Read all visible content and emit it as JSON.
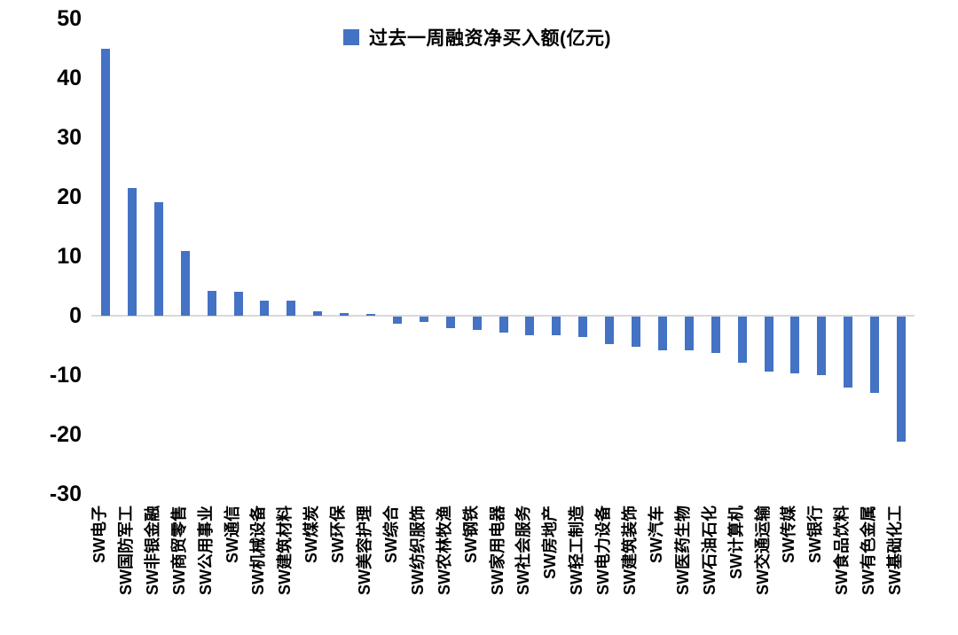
{
  "chart_data": {
    "type": "bar",
    "title": "",
    "legend": "过去一周融资净买入额(亿元)",
    "legend_position": "top-center",
    "grid": false,
    "xlabel": "",
    "ylabel": "",
    "ylim": [
      -30,
      50
    ],
    "ytick_step": 10,
    "yticks": [
      50,
      40,
      30,
      20,
      10,
      0,
      -10,
      -20,
      -30
    ],
    "categories": [
      "SW电子",
      "SW国防军工",
      "SW非银金融",
      "SW商贸零售",
      "SW公用事业",
      "SW通信",
      "SW机械设备",
      "SW建筑材料",
      "SW煤炭",
      "SW环保",
      "SW美容护理",
      "SW综合",
      "SW纺织服饰",
      "SW农林牧渔",
      "SW钢铁",
      "SW家用电器",
      "SW社会服务",
      "SW房地产",
      "SW轻工制造",
      "SW电力设备",
      "SW建筑装饰",
      "SW汽车",
      "SW医药生物",
      "SW石油石化",
      "SW计算机",
      "SW交通运输",
      "SW传媒",
      "SW银行",
      "SW食品饮料",
      "SW有色金属",
      "SW基础化工"
    ],
    "values": [
      45.0,
      21.5,
      19.1,
      10.9,
      4.2,
      4.0,
      2.6,
      2.6,
      0.8,
      0.4,
      0.3,
      -1.2,
      -0.9,
      -1.9,
      -2.2,
      -2.7,
      -3.1,
      -3.2,
      -3.5,
      -4.7,
      -5.1,
      -5.6,
      -5.7,
      -6.1,
      -7.7,
      -9.2,
      -9.5,
      -9.9,
      -12.0,
      -12.9,
      -21.0
    ],
    "colors": {
      "bar": "#4472C4",
      "axis_line": "#D9D9D9",
      "text": "#000000"
    }
  }
}
